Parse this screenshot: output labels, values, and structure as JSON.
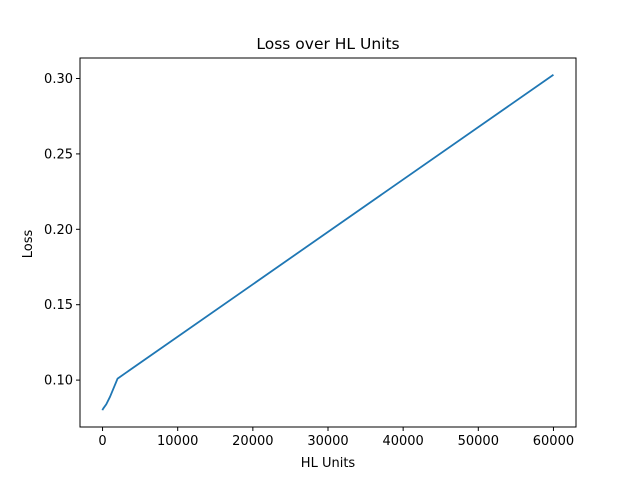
{
  "chart_data": {
    "type": "line",
    "title": "Loss over HL Units",
    "xlabel": "HL Units",
    "ylabel": "Loss",
    "xlim": [
      -3000,
      63000
    ],
    "ylim": [
      0.0689,
      0.3136
    ],
    "xticks": [
      0,
      10000,
      20000,
      30000,
      40000,
      50000,
      60000
    ],
    "xtick_labels": [
      "0",
      "10000",
      "20000",
      "30000",
      "40000",
      "50000",
      "60000"
    ],
    "yticks": [
      0.1,
      0.15,
      0.2,
      0.25,
      0.3
    ],
    "ytick_labels": [
      "0.10",
      "0.15",
      "0.20",
      "0.25",
      "0.30"
    ],
    "grid": false,
    "legend": null,
    "series": [
      {
        "color": "#1f77b4",
        "x": [
          1,
          5,
          10,
          50,
          100,
          500,
          1000,
          2000,
          60000
        ],
        "y": [
          0.08,
          0.0801,
          0.0803,
          0.0808,
          0.0812,
          0.084,
          0.089,
          0.101,
          0.3025
        ]
      }
    ]
  }
}
